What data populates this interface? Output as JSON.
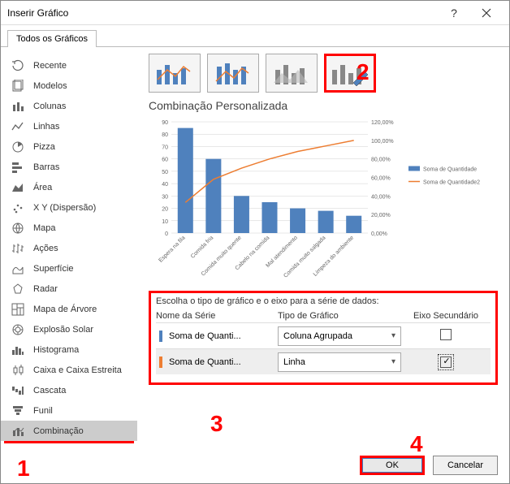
{
  "window": {
    "title": "Inserir Gráfico"
  },
  "tab": {
    "label": "Todos os Gráficos"
  },
  "sidebar": {
    "items": [
      {
        "label": "Recente"
      },
      {
        "label": "Modelos"
      },
      {
        "label": "Colunas"
      },
      {
        "label": "Linhas"
      },
      {
        "label": "Pizza"
      },
      {
        "label": "Barras"
      },
      {
        "label": "Área"
      },
      {
        "label": "X Y (Dispersão)"
      },
      {
        "label": "Mapa"
      },
      {
        "label": "Ações"
      },
      {
        "label": "Superfície"
      },
      {
        "label": "Radar"
      },
      {
        "label": "Mapa de Árvore"
      },
      {
        "label": "Explosão Solar"
      },
      {
        "label": "Histograma"
      },
      {
        "label": "Caixa e Caixa Estreita"
      },
      {
        "label": "Cascata"
      },
      {
        "label": "Funil"
      },
      {
        "label": "Combinação"
      }
    ],
    "selected_index": 18
  },
  "subtitle": "Combinação Personalizada",
  "chart": {
    "type": "combo",
    "categories": [
      "Espera na fila",
      "Comida fria",
      "Comida muito quente",
      "Cabelo na comida",
      "Mal atendimento",
      "Comida muito salgada",
      "Limpeza do ambiente"
    ],
    "bar_values": [
      85,
      60,
      30,
      25,
      20,
      18,
      14
    ],
    "bar_color": "#4f81bd",
    "line_values_pct": [
      33,
      58,
      70,
      80,
      88,
      94,
      100
    ],
    "line_color": "#ed7d31",
    "y_left": {
      "min": 0,
      "max": 90,
      "step": 10
    },
    "y_right": {
      "min": 0,
      "max": 120,
      "step": 20,
      "suffix": ",00%"
    },
    "legend": [
      {
        "label": "Soma de Quantidade",
        "color": "#4f81bd",
        "type": "bar"
      },
      {
        "label": "Soma de Quantidade2",
        "color": "#ed7d31",
        "type": "line"
      }
    ],
    "grid_color": "#d0d0d0",
    "axis_color": "#888",
    "label_fontsize": 7
  },
  "series_section": {
    "title": "Escolha o tipo de gráfico e o eixo para a série de dados:",
    "head": {
      "name": "Nome da Série",
      "type": "Tipo de Gráfico",
      "sec": "Eixo Secundário"
    },
    "rows": [
      {
        "color": "#4f81bd",
        "name": "Soma de Quanti...",
        "type": "Coluna Agrupada",
        "secondary": false
      },
      {
        "color": "#ed7d31",
        "name": "Soma de Quanti...",
        "type": "Linha",
        "secondary": true
      }
    ]
  },
  "buttons": {
    "ok": "OK",
    "cancel": "Cancelar"
  },
  "annotations": {
    "a1": "1",
    "a2": "2",
    "a3": "3",
    "a4": "4"
  },
  "colors": {
    "highlight": "#ff0000"
  }
}
